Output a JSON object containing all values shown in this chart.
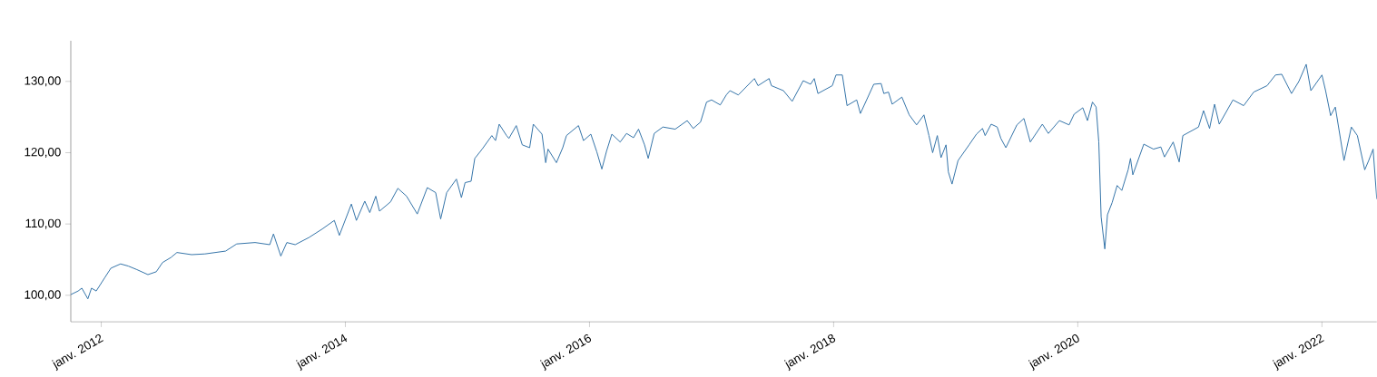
{
  "chart_data": {
    "type": "line",
    "xlim": [
      "2011-10-02",
      "2022-06-14"
    ],
    "ylim": [
      96.3,
      135.7
    ],
    "xticks": [
      {
        "value": "2012-01-01",
        "label": "janv. 2012"
      },
      {
        "value": "2014-01-01",
        "label": "janv. 2014"
      },
      {
        "value": "2016-01-01",
        "label": "janv. 2016"
      },
      {
        "value": "2018-01-01",
        "label": "janv. 2018"
      },
      {
        "value": "2020-01-01",
        "label": "janv. 2020"
      },
      {
        "value": "2022-01-01",
        "label": "janv. 2022"
      }
    ],
    "yticks": [
      {
        "value": 100,
        "label": "100,00"
      },
      {
        "value": 110,
        "label": "110,00"
      },
      {
        "value": 120,
        "label": "120,00"
      },
      {
        "value": 130,
        "label": "130,00"
      }
    ],
    "grid": false,
    "x": [
      "2011-10-02",
      "2011-10-24",
      "2011-11-04",
      "2011-11-22",
      "2011-12-03",
      "2011-12-17",
      "2012-01-12",
      "2012-01-30",
      "2012-02-28",
      "2012-03-22",
      "2012-04-17",
      "2012-05-20",
      "2012-06-14",
      "2012-07-03",
      "2012-07-28",
      "2012-08-15",
      "2012-09-28",
      "2012-11-07",
      "2013-01-08",
      "2013-02-10",
      "2013-04-06",
      "2013-05-20",
      "2013-05-31",
      "2013-06-22",
      "2013-07-10",
      "2013-08-04",
      "2013-09-14",
      "2013-10-24",
      "2013-11-29",
      "2013-12-14",
      "2014-01-19",
      "2014-02-03",
      "2014-02-28",
      "2014-03-15",
      "2014-04-02",
      "2014-04-13",
      "2014-05-16",
      "2014-06-07",
      "2014-07-03",
      "2014-08-04",
      "2014-09-03",
      "2014-09-28",
      "2014-10-13",
      "2014-10-31",
      "2014-11-29",
      "2014-12-14",
      "2014-12-25",
      "2015-01-12",
      "2015-01-23",
      "2015-02-14",
      "2015-03-15",
      "2015-03-26",
      "2015-04-06",
      "2015-04-28",
      "2015-05-05",
      "2015-05-27",
      "2015-06-14",
      "2015-07-06",
      "2015-07-17",
      "2015-08-12",
      "2015-08-23",
      "2015-08-30",
      "2015-09-24",
      "2015-10-13",
      "2015-10-24",
      "2015-11-29",
      "2015-12-14",
      "2016-01-05",
      "2016-01-23",
      "2016-02-07",
      "2016-02-21",
      "2016-03-08",
      "2016-04-02",
      "2016-04-21",
      "2016-05-12",
      "2016-05-27",
      "2016-06-14",
      "2016-06-25",
      "2016-07-13",
      "2016-08-08",
      "2016-09-14",
      "2016-10-20",
      "2016-11-07",
      "2016-11-29",
      "2016-12-17",
      "2017-01-01",
      "2017-01-27",
      "2017-02-14",
      "2017-02-25",
      "2017-03-22",
      "2017-05-09",
      "2017-05-20",
      "2017-06-22",
      "2017-06-29",
      "2017-08-04",
      "2017-08-30",
      "2017-10-02",
      "2017-10-24",
      "2017-11-04",
      "2017-11-15",
      "2017-12-28",
      "2018-01-08",
      "2018-01-27",
      "2018-02-10",
      "2018-03-11",
      "2018-03-22",
      "2018-05-01",
      "2018-05-23",
      "2018-05-31",
      "2018-06-14",
      "2018-06-25",
      "2018-07-24",
      "2018-08-15",
      "2018-09-06",
      "2018-09-28",
      "2018-10-13",
      "2018-10-24",
      "2018-11-07",
      "2018-11-18",
      "2018-12-03",
      "2018-12-10",
      "2018-12-21",
      "2019-01-08",
      "2019-02-10",
      "2019-03-04",
      "2019-03-22",
      "2019-03-30",
      "2019-04-17",
      "2019-05-05",
      "2019-05-16",
      "2019-05-31",
      "2019-07-03",
      "2019-07-24",
      "2019-08-12",
      "2019-09-17",
      "2019-10-05",
      "2019-11-07",
      "2019-12-06",
      "2019-12-21",
      "2020-01-16",
      "2020-01-30",
      "2020-02-14",
      "2020-02-25",
      "2020-03-04",
      "2020-03-11",
      "2020-03-22",
      "2020-03-30",
      "2020-04-13",
      "2020-04-28",
      "2020-05-12",
      "2020-05-31",
      "2020-06-07",
      "2020-06-14",
      "2020-07-17",
      "2020-08-15",
      "2020-09-06",
      "2020-09-17",
      "2020-10-13",
      "2020-10-31",
      "2020-11-11",
      "2020-12-28",
      "2021-01-12",
      "2021-01-30",
      "2021-02-14",
      "2021-02-28",
      "2021-04-10",
      "2021-05-12",
      "2021-06-11",
      "2021-07-21",
      "2021-08-15",
      "2021-09-03",
      "2021-10-02",
      "2021-10-24",
      "2021-11-15",
      "2021-11-29",
      "2022-01-01",
      "2022-01-12",
      "2022-01-27",
      "2022-02-10",
      "2022-03-08",
      "2022-03-30",
      "2022-04-17",
      "2022-05-09",
      "2022-05-20",
      "2022-06-03",
      "2022-06-14"
    ],
    "series": [
      {
        "color": "#3574a9",
        "values": [
          100.1,
          100.6,
          101.0,
          99.5,
          101.0,
          100.6,
          102.5,
          103.8,
          104.4,
          104.1,
          103.6,
          102.9,
          103.3,
          104.6,
          105.3,
          106.0,
          105.7,
          105.8,
          106.2,
          107.2,
          107.4,
          107.1,
          108.6,
          105.5,
          107.4,
          107.1,
          108.1,
          109.3,
          110.5,
          108.4,
          112.8,
          110.5,
          113.2,
          111.6,
          113.9,
          111.8,
          113.1,
          115.0,
          113.9,
          111.4,
          115.1,
          114.4,
          110.7,
          114.4,
          116.3,
          113.7,
          115.8,
          116.0,
          119.2,
          120.5,
          122.4,
          121.7,
          124.0,
          122.4,
          122.0,
          123.8,
          121.1,
          120.7,
          124.0,
          122.6,
          118.6,
          120.5,
          118.6,
          120.7,
          122.4,
          123.8,
          121.7,
          122.6,
          120.1,
          117.7,
          120.2,
          122.6,
          121.5,
          122.7,
          122.1,
          123.3,
          121.1,
          119.2,
          122.7,
          123.6,
          123.3,
          124.5,
          123.4,
          124.3,
          127.1,
          127.4,
          126.7,
          128.1,
          128.7,
          128.1,
          130.4,
          129.4,
          130.4,
          129.4,
          128.7,
          127.2,
          130.1,
          129.6,
          130.4,
          128.3,
          129.4,
          130.9,
          130.9,
          126.6,
          127.4,
          125.5,
          129.6,
          129.7,
          128.3,
          128.5,
          126.8,
          127.8,
          125.3,
          123.9,
          125.3,
          122.4,
          120.0,
          122.4,
          119.3,
          121.1,
          117.3,
          115.6,
          118.9,
          121.1,
          122.6,
          123.4,
          122.4,
          124.0,
          123.6,
          122.0,
          120.7,
          123.9,
          124.8,
          121.5,
          124.0,
          122.7,
          124.5,
          123.9,
          125.4,
          126.3,
          124.5,
          127.1,
          126.4,
          121.5,
          111.0,
          106.5,
          111.3,
          113.0,
          115.4,
          114.7,
          117.6,
          119.2,
          116.9,
          121.2,
          120.5,
          120.8,
          119.4,
          121.5,
          118.7,
          122.4,
          123.6,
          125.9,
          123.4,
          126.8,
          124.0,
          127.4,
          126.6,
          128.5,
          129.4,
          130.9,
          131.0,
          128.3,
          130.0,
          132.4,
          128.7,
          130.9,
          128.7,
          125.2,
          126.4,
          118.9,
          123.6,
          122.4,
          117.6,
          118.8,
          120.5,
          113.5
        ]
      }
    ]
  }
}
